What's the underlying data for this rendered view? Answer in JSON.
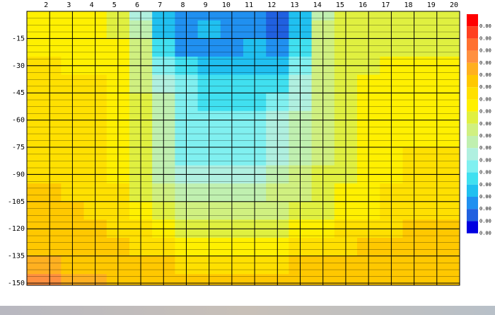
{
  "chart_data": {
    "type": "heatmap",
    "x": [
      1,
      2,
      3,
      4,
      5,
      6,
      7,
      8,
      9,
      10,
      11,
      12,
      13,
      14,
      15,
      16,
      17,
      18,
      19,
      20
    ],
    "y": [
      0,
      -10,
      -20,
      -30,
      -40,
      -50,
      -60,
      -70,
      -80,
      -90,
      -100,
      -110,
      -120,
      -130,
      -140,
      -150
    ],
    "z": [
      [
        7,
        7,
        7,
        7,
        8,
        11,
        14,
        15,
        15,
        15,
        15,
        16,
        14,
        10,
        8,
        8,
        8,
        8,
        8,
        8
      ],
      [
        7,
        7,
        7,
        7,
        8,
        10,
        14,
        15,
        14,
        15,
        15,
        16,
        14,
        9,
        8,
        8,
        8,
        8,
        8,
        8
      ],
      [
        7,
        7,
        7,
        7,
        7,
        9,
        13,
        15,
        15,
        15,
        14,
        15,
        13,
        9,
        8,
        8,
        8,
        8,
        8,
        8
      ],
      [
        6,
        6,
        7,
        7,
        7,
        9,
        12,
        13,
        14,
        14,
        14,
        14,
        12,
        9,
        8,
        8,
        7,
        7,
        7,
        7
      ],
      [
        6,
        6,
        6,
        6,
        7,
        9,
        11,
        12,
        13,
        13,
        13,
        13,
        11,
        9,
        8,
        7,
        7,
        7,
        7,
        7
      ],
      [
        6,
        6,
        6,
        6,
        7,
        8,
        10,
        12,
        13,
        13,
        13,
        12,
        11,
        9,
        8,
        7,
        7,
        7,
        7,
        7
      ],
      [
        6,
        6,
        6,
        6,
        7,
        8,
        10,
        12,
        12,
        12,
        12,
        11,
        10,
        9,
        8,
        7,
        7,
        7,
        7,
        7
      ],
      [
        6,
        6,
        6,
        6,
        7,
        8,
        10,
        12,
        12,
        12,
        12,
        11,
        10,
        9,
        8,
        7,
        7,
        7,
        7,
        7
      ],
      [
        6,
        6,
        6,
        6,
        7,
        8,
        10,
        12,
        12,
        12,
        12,
        11,
        10,
        9,
        8,
        7,
        7,
        6,
        6,
        6
      ],
      [
        6,
        6,
        6,
        6,
        7,
        8,
        10,
        11,
        11,
        11,
        11,
        10,
        9,
        8,
        8,
        7,
        7,
        6,
        6,
        6
      ],
      [
        5,
        5,
        6,
        6,
        6,
        8,
        9,
        10,
        10,
        10,
        10,
        9,
        9,
        8,
        7,
        7,
        6,
        6,
        6,
        6
      ],
      [
        5,
        5,
        5,
        6,
        6,
        7,
        8,
        9,
        9,
        9,
        9,
        9,
        8,
        8,
        7,
        7,
        6,
        6,
        6,
        6
      ],
      [
        5,
        5,
        5,
        5,
        6,
        6,
        7,
        8,
        8,
        8,
        8,
        8,
        7,
        7,
        6,
        6,
        6,
        5,
        5,
        5
      ],
      [
        5,
        5,
        5,
        5,
        5,
        6,
        6,
        7,
        7,
        7,
        7,
        7,
        6,
        6,
        6,
        5,
        5,
        5,
        5,
        5
      ],
      [
        4,
        4,
        5,
        5,
        5,
        5,
        5,
        6,
        6,
        6,
        6,
        6,
        5,
        5,
        5,
        5,
        5,
        5,
        5,
        5
      ],
      [
        3,
        3,
        4,
        4,
        5,
        5,
        5,
        5,
        5,
        5,
        5,
        5,
        5,
        5,
        5,
        5,
        5,
        5,
        5,
        5
      ]
    ],
    "xlim": [
      1,
      20
    ],
    "ylim": [
      0,
      -150
    ],
    "xticks": [
      2,
      3,
      4,
      5,
      6,
      7,
      8,
      9,
      10,
      11,
      12,
      13,
      14,
      15,
      16,
      17,
      18,
      19,
      20
    ],
    "yticks": [
      -15,
      -30,
      -45,
      -60,
      -75,
      -90,
      -105,
      -120,
      -135,
      -150
    ],
    "grid": true,
    "colorscale": [
      "#ff0000",
      "#ff4020",
      "#ff7030",
      "#ff9040",
      "#ffb020",
      "#ffc800",
      "#ffe000",
      "#fff000",
      "#e0f040",
      "#d0f080",
      "#c0f0b0",
      "#b0f0e0",
      "#80f0f0",
      "#40e0f0",
      "#20c0f0",
      "#2090f0",
      "#2060e0",
      "#0000e0"
    ],
    "colorbar_labels": [
      "0.00",
      "0.00",
      "0.00",
      "0.00",
      "0.00",
      "0.00",
      "0.00",
      "0.00",
      "0.00",
      "0.00",
      "0.00",
      "0.00",
      "0.00",
      "0.00",
      "0.00",
      "0.00",
      "0.00",
      "0.00"
    ]
  }
}
